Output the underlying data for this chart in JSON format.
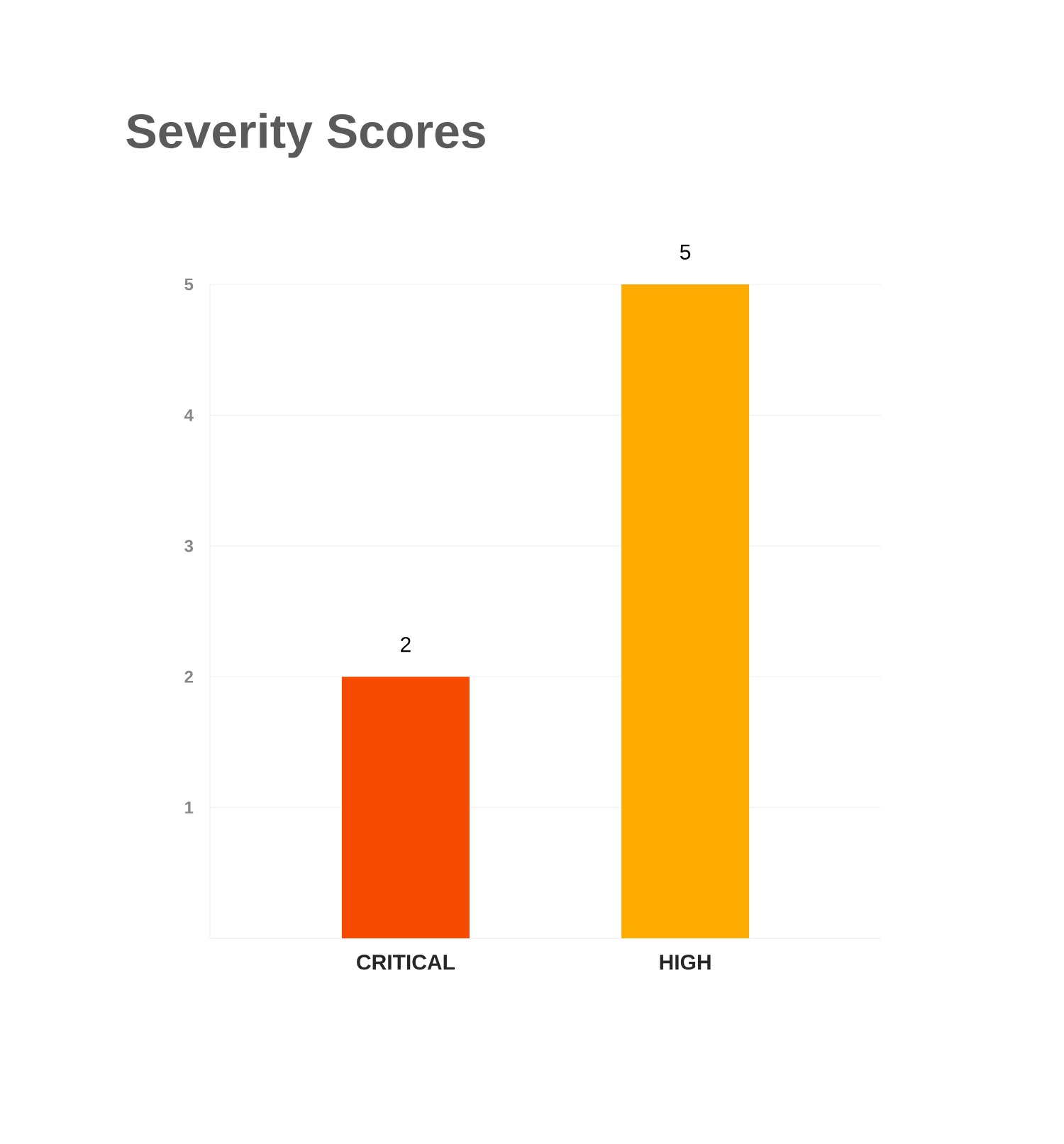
{
  "chart_data": {
    "type": "bar",
    "title": "Severity Scores",
    "categories": [
      "CRITICAL",
      "HIGH"
    ],
    "values": [
      2,
      5
    ],
    "colors": [
      "#f54a00",
      "#fdab00"
    ],
    "ylim": [
      0,
      5
    ],
    "yticks": [
      1,
      2,
      3,
      4,
      5
    ],
    "grid": "y",
    "data_labels": true
  }
}
